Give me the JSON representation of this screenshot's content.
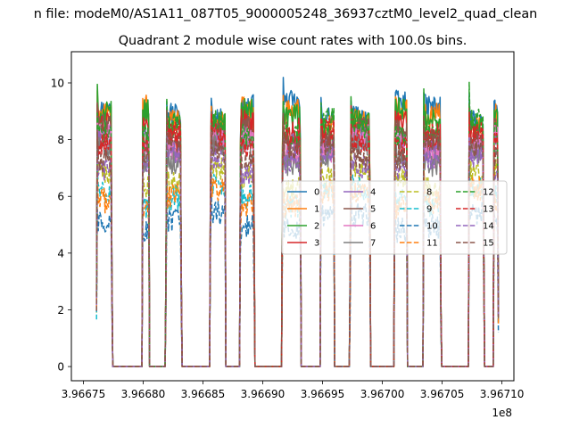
{
  "chart_data": {
    "type": "line",
    "suptitle": "n file: modeM0/AS1A11_087T05_9000005248_36937cztM0_level2_quad_clean",
    "title": "Quadrant 2 module wise count rates with 100.0s bins.",
    "xlabel": "",
    "ylabel": "",
    "x_offset_label": "1e8",
    "xlim": [
      3.96674,
      3.96711
    ],
    "ylim": [
      -0.5,
      11.1
    ],
    "xticks": [
      3.96675,
      3.9668,
      3.96685,
      3.9669,
      3.96695,
      3.967,
      3.96705,
      3.9671
    ],
    "xtick_labels": [
      "3.96675",
      "3.96680",
      "3.96685",
      "3.96690",
      "3.96695",
      "3.96700",
      "3.96705",
      "3.96710"
    ],
    "yticks": [
      0,
      2,
      4,
      6,
      8,
      10
    ],
    "ytick_labels": [
      "0",
      "2",
      "4",
      "6",
      "8",
      "10"
    ],
    "grid": false,
    "legend": {
      "placement": "center-right",
      "ncol": 4
    },
    "on_segments": [
      [
        3.966761,
        3.966774
      ],
      [
        3.966799,
        3.966805
      ],
      [
        3.966819,
        3.966832
      ],
      [
        3.966856,
        3.966869
      ],
      [
        3.966881,
        3.966893
      ],
      [
        3.966916,
        3.966932
      ],
      [
        3.966948,
        3.96696
      ],
      [
        3.966973,
        3.96699
      ],
      [
        3.96701,
        3.967021
      ],
      [
        3.967034,
        3.967049
      ],
      [
        3.967072,
        3.967085
      ],
      [
        3.967093,
        3.967097
      ]
    ],
    "series": [
      {
        "name": "0",
        "color": "#1f77b4",
        "dash": "solid",
        "level": 9.0
      },
      {
        "name": "1",
        "color": "#ff7f0e",
        "dash": "solid",
        "level": 8.8
      },
      {
        "name": "2",
        "color": "#2ca02c",
        "dash": "solid",
        "level": 8.7
      },
      {
        "name": "3",
        "color": "#d62728",
        "dash": "solid",
        "level": 8.3
      },
      {
        "name": "4",
        "color": "#9467bd",
        "dash": "solid",
        "level": 7.9
      },
      {
        "name": "5",
        "color": "#8c564b",
        "dash": "solid",
        "level": 8.1
      },
      {
        "name": "6",
        "color": "#e377c2",
        "dash": "solid",
        "level": 7.8
      },
      {
        "name": "7",
        "color": "#7f7f7f",
        "dash": "solid",
        "level": 7.5
      },
      {
        "name": "8",
        "color": "#bcbd22",
        "dash": "dashed",
        "level": 6.6
      },
      {
        "name": "9",
        "color": "#17becf",
        "dash": "dashed",
        "level": 6.0
      },
      {
        "name": "10",
        "color": "#1f77b4",
        "dash": "dashed",
        "level": 5.1
      },
      {
        "name": "11",
        "color": "#ff7f0e",
        "dash": "dashed",
        "level": 5.9
      },
      {
        "name": "12",
        "color": "#2ca02c",
        "dash": "dashed",
        "level": 8.4
      },
      {
        "name": "13",
        "color": "#d62728",
        "dash": "dashed",
        "level": 8.0
      },
      {
        "name": "14",
        "color": "#9467bd",
        "dash": "dashed",
        "level": 7.2
      },
      {
        "name": "15",
        "color": "#8c564b",
        "dash": "dashed",
        "level": 7.6
      }
    ]
  }
}
